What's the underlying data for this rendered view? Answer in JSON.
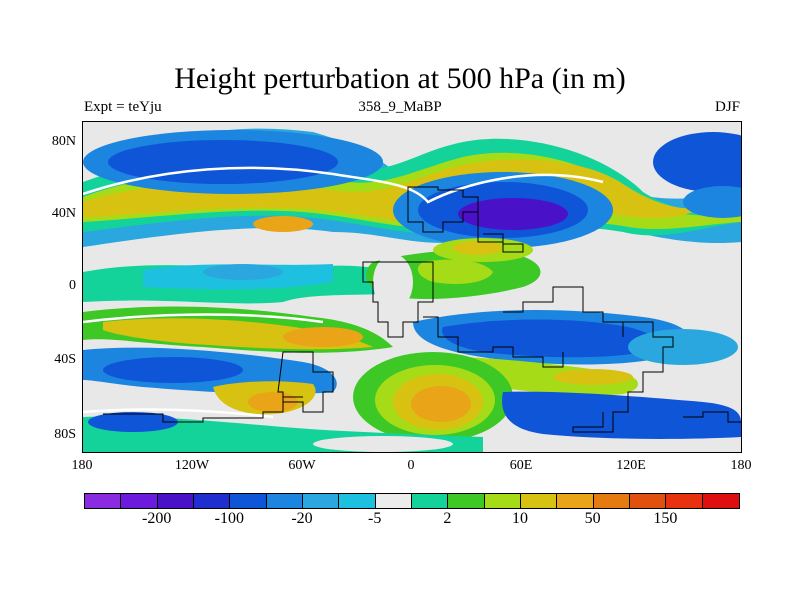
{
  "figure": {
    "title": "Height perturbation at 500 hPa (in m)",
    "left_label": "Expt = teYju",
    "center_label": "358_9_MaBP",
    "right_label": "DJF"
  },
  "axes": {
    "y_ticks": [
      "80N",
      "40N",
      "0",
      "40S",
      "80S"
    ],
    "x_ticks": [
      "180",
      "120W",
      "60W",
      "0",
      "60E",
      "120E",
      "180"
    ]
  },
  "colorbar": {
    "colors": [
      "#8a2be2",
      "#6a1bdc",
      "#4a12c8",
      "#1f2fcf",
      "#0f55d8",
      "#1b85e0",
      "#2aa7de",
      "#1ec0df",
      "#ececec",
      "#14d39a",
      "#3dc826",
      "#a6dc17",
      "#d7c211",
      "#e9a418",
      "#e57b10",
      "#e1500f",
      "#e8320f",
      "#e00f0f"
    ],
    "labels": [
      {
        "text": "-200",
        "index": 1
      },
      {
        "text": "-100",
        "index": 3
      },
      {
        "text": "-20",
        "index": 5
      },
      {
        "text": "-5",
        "index": 7
      },
      {
        "text": "2",
        "index": 9
      },
      {
        "text": "10",
        "index": 11
      },
      {
        "text": "50",
        "index": 13
      },
      {
        "text": "150",
        "index": 15
      }
    ]
  },
  "palette": {
    "missing": "#e8e8e8",
    "deep_blue": "#1f2fcf",
    "blue": "#0f55d8",
    "mid_blue": "#1b85e0",
    "light_blue": "#2aa7de",
    "cyan": "#1ec0df",
    "teal": "#14d39a",
    "green": "#3dc826",
    "lime": "#a6dc17",
    "yellow": "#d7c211",
    "orange": "#e9a418",
    "deep_orange": "#e57b10",
    "purple": "#4a12c8"
  }
}
